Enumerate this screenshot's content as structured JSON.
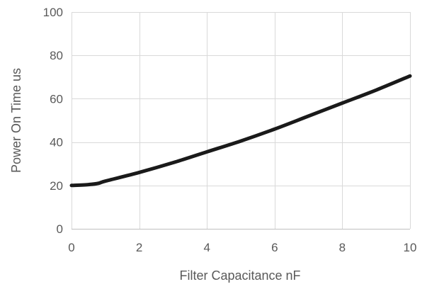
{
  "chart_data": {
    "type": "line",
    "title": "",
    "xlabel": "Filter Capacitance nF",
    "ylabel": "Power On Time us",
    "xlim": [
      0,
      10
    ],
    "ylim": [
      0,
      100
    ],
    "x_ticks": [
      0,
      2,
      4,
      6,
      8,
      10
    ],
    "y_ticks": [
      0,
      20,
      40,
      60,
      80,
      100
    ],
    "grid": true,
    "legend": "none",
    "series": [
      {
        "color": "#1a1a1a",
        "x": [
          0,
          0.5,
          0.8,
          1,
          2,
          3,
          4,
          5,
          6,
          7,
          8,
          9,
          10
        ],
        "y": [
          20,
          20.4,
          21,
          22,
          26,
          30.5,
          35.5,
          40.5,
          46,
          52,
          58,
          64,
          70.5
        ]
      }
    ]
  }
}
